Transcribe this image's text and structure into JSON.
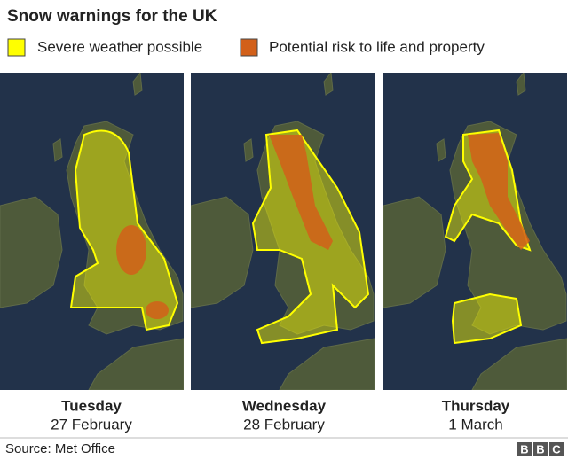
{
  "title": "Snow warnings for the UK",
  "legend": [
    {
      "label": "Severe weather possible",
      "color": "#ffff00"
    },
    {
      "label": "Potential risk to life and property",
      "color": "#d2601a"
    }
  ],
  "panels": [
    {
      "day": "Tuesday",
      "date": "27 February"
    },
    {
      "day": "Wednesday",
      "date": "28 February"
    },
    {
      "day": "Thursday",
      "date": "1 March"
    }
  ],
  "source": "Source: Met Office",
  "logo": [
    "B",
    "B",
    "C"
  ]
}
